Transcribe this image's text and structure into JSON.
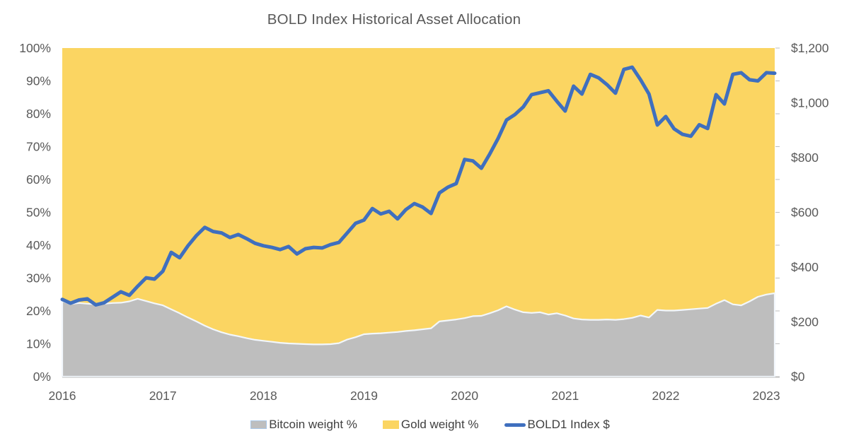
{
  "title": "BOLD Index Historical Asset Allocation",
  "legend": {
    "items": [
      {
        "label": "Bitcoin weight %",
        "swatch": "area",
        "fill": "#BEBEBE",
        "border": "#A9C7E7"
      },
      {
        "label": "Gold weight %",
        "swatch": "area",
        "fill": "#FBD562",
        "border": ""
      },
      {
        "label": "BOLD1 Index $",
        "swatch": "line",
        "fill": "#3F6FBE",
        "border": ""
      }
    ]
  },
  "axes": {
    "left_tick_labels": [
      "100%",
      "90%",
      "80%",
      "70%",
      "60%",
      "50%",
      "40%",
      "30%",
      "20%",
      "10%",
      "0%"
    ],
    "right_tick_labels": [
      "$1,200",
      "$1,000",
      "$800",
      "$600",
      "$400",
      "$200",
      "$0"
    ],
    "x_tick_labels": [
      "2016",
      "2017",
      "2018",
      "2019",
      "2020",
      "2021",
      "2022",
      "2023"
    ]
  },
  "colors": {
    "gold_area": "#FBD562",
    "bitcoin_area": "#BEBEBE",
    "area_separator": "#F2F7FC",
    "index_line": "#3F6FBE",
    "axis_line": "#BFBFBF",
    "tick": "#BFBFBF",
    "axis_text": "#595959",
    "title_text": "#595959",
    "legend_text": "#404040"
  },
  "chart_data": {
    "type": "area",
    "subtype": "stacked-area-with-line-overlay",
    "title": "BOLD Index Historical Asset Allocation",
    "frequency": "monthly",
    "x_start": "2016-01",
    "x_end": "2023-02",
    "x_year_ticks": [
      "2016",
      "2017",
      "2018",
      "2019",
      "2020",
      "2021",
      "2022",
      "2023"
    ],
    "left_axis": {
      "label_format": "percent",
      "min": 0,
      "max": 100,
      "tick_step": 10
    },
    "right_axis": {
      "label_format": "usd",
      "min": 0,
      "max": 1200,
      "label_step": 200
    },
    "grid": "off",
    "legend_position": "bottom",
    "series": [
      {
        "name": "Bitcoin weight %",
        "axis": "left",
        "unit": "%",
        "color": "#BEBEBE",
        "render": "stacked-area",
        "values": [
          23.0,
          22.1,
          22.4,
          22.2,
          22.0,
          22.2,
          22.4,
          22.5,
          22.9,
          23.7,
          23.0,
          22.3,
          21.7,
          20.5,
          19.3,
          18.0,
          16.8,
          15.5,
          14.4,
          13.5,
          12.8,
          12.3,
          11.7,
          11.2,
          10.9,
          10.6,
          10.3,
          10.1,
          10.0,
          9.9,
          9.8,
          9.8,
          9.9,
          10.2,
          11.3,
          12.0,
          12.9,
          13.1,
          13.2,
          13.4,
          13.6,
          13.9,
          14.1,
          14.4,
          14.7,
          16.8,
          17.1,
          17.4,
          17.8,
          18.4,
          18.5,
          19.3,
          20.2,
          21.4,
          20.4,
          19.6,
          19.4,
          19.6,
          18.9,
          19.3,
          18.6,
          17.7,
          17.4,
          17.3,
          17.3,
          17.4,
          17.3,
          17.5,
          17.9,
          18.6,
          18.0,
          20.3,
          20.1,
          20.1,
          20.3,
          20.5,
          20.7,
          20.9,
          22.2,
          23.3,
          22.0,
          21.7,
          22.9,
          24.3,
          25.0,
          25.4
        ]
      },
      {
        "name": "Gold weight %",
        "axis": "left",
        "unit": "%",
        "color": "#FBD562",
        "render": "stacked-area",
        "values": [
          77.0,
          77.9,
          77.6,
          77.8,
          78.0,
          77.8,
          77.6,
          77.5,
          77.1,
          76.3,
          77.0,
          77.7,
          78.3,
          79.5,
          80.7,
          82.0,
          83.2,
          84.5,
          85.6,
          86.5,
          87.2,
          87.7,
          88.3,
          88.8,
          89.1,
          89.4,
          89.7,
          89.9,
          90.0,
          90.1,
          90.2,
          90.2,
          90.1,
          89.8,
          88.7,
          88.0,
          87.1,
          86.9,
          86.8,
          86.6,
          86.4,
          86.1,
          85.9,
          85.6,
          85.3,
          83.2,
          82.9,
          82.6,
          82.2,
          81.6,
          81.5,
          80.7,
          79.8,
          78.6,
          79.6,
          80.4,
          80.6,
          80.4,
          81.1,
          80.7,
          81.4,
          82.3,
          82.6,
          82.7,
          82.7,
          82.6,
          82.7,
          82.5,
          82.1,
          81.4,
          82.0,
          79.7,
          79.9,
          79.9,
          79.7,
          79.5,
          79.3,
          79.1,
          77.8,
          76.7,
          78.0,
          78.3,
          77.1,
          75.7,
          75.0,
          74.6
        ]
      },
      {
        "name": "BOLD1 Index $",
        "axis": "right",
        "unit": "USD",
        "color": "#3F6FBE",
        "render": "line",
        "values": [
          282,
          268,
          280,
          284,
          262,
          270,
          290,
          310,
          297,
          330,
          361,
          356,
          385,
          454,
          434,
          478,
          515,
          545,
          530,
          525,
          508,
          519,
          504,
          487,
          478,
          472,
          464,
          475,
          448,
          467,
          472,
          470,
          482,
          490,
          525,
          560,
          572,
          614,
          594,
          604,
          576,
          610,
          632,
          619,
          596,
          671,
          692,
          705,
          793,
          788,
          761,
          813,
          870,
          937,
          957,
          985,
          1030,
          1037,
          1044,
          1006,
          970,
          1061,
          1032,
          1104,
          1091,
          1066,
          1035,
          1122,
          1130,
          1084,
          1032,
          919,
          950,
          905,
          885,
          878,
          920,
          906,
          1030,
          996,
          1104,
          1110,
          1084,
          1080,
          1110,
          1108
        ]
      }
    ]
  }
}
